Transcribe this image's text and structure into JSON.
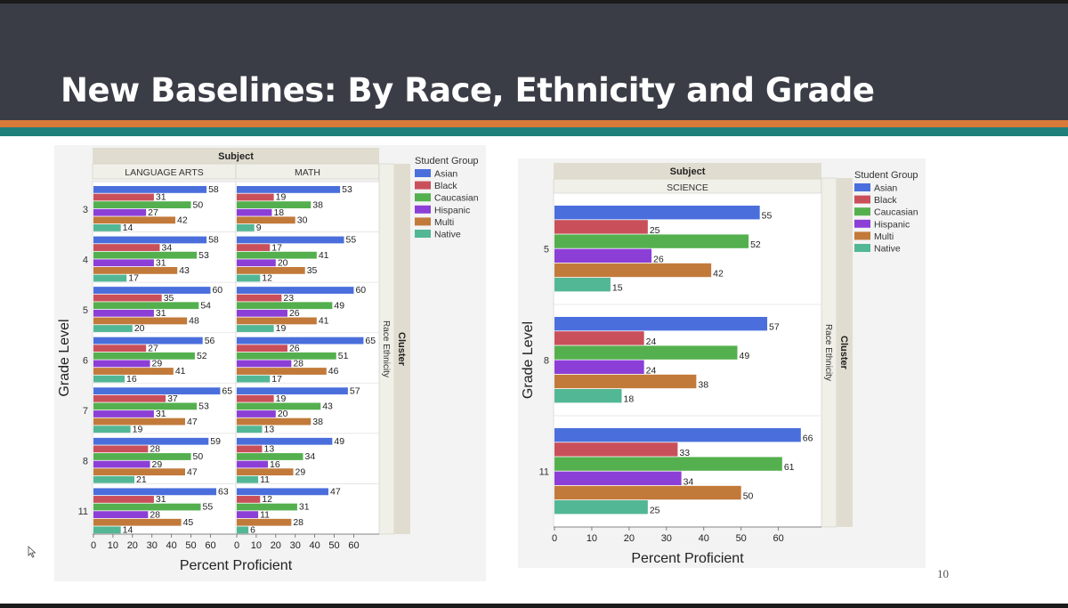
{
  "slide": {
    "title": "New Baselines: By Race, Ethnicity and Grade",
    "page_number": "10"
  },
  "colors": {
    "Asian": "#4a6fdc",
    "Black": "#c9505a",
    "Caucasian": "#54b04e",
    "Hispanic": "#8c3fd6",
    "Multi": "#c27a3a",
    "Native": "#52b794"
  },
  "chart_data": [
    {
      "type": "bar",
      "orientation": "horizontal",
      "subject_header": "Subject",
      "panels": [
        "LANGUAGE ARTS",
        "MATH"
      ],
      "cluster_header": "Cluster",
      "cluster_value": "Race Ethnicity",
      "xlabel": "Percent Proficient",
      "ylabel": "Grade Level",
      "xlim": [
        0,
        70
      ],
      "xticks": [
        0,
        10,
        20,
        30,
        40,
        50,
        60
      ],
      "legend_title": "Student Group",
      "legend_position": "right",
      "categories": [
        "3",
        "4",
        "5",
        "6",
        "7",
        "8",
        "11"
      ],
      "series_names": [
        "Asian",
        "Black",
        "Caucasian",
        "Hispanic",
        "Multi",
        "Native"
      ],
      "values": {
        "LANGUAGE ARTS": {
          "Asian": [
            58,
            58,
            60,
            56,
            65,
            59,
            63
          ],
          "Black": [
            31,
            34,
            35,
            27,
            37,
            28,
            31
          ],
          "Caucasian": [
            50,
            53,
            54,
            52,
            53,
            50,
            55
          ],
          "Hispanic": [
            27,
            31,
            31,
            29,
            31,
            29,
            28
          ],
          "Multi": [
            42,
            43,
            48,
            41,
            47,
            47,
            45
          ],
          "Native": [
            14,
            17,
            20,
            16,
            19,
            21,
            14
          ]
        },
        "MATH": {
          "Asian": [
            53,
            55,
            60,
            65,
            57,
            49,
            47
          ],
          "Black": [
            19,
            17,
            23,
            26,
            19,
            13,
            12
          ],
          "Caucasian": [
            38,
            41,
            49,
            51,
            43,
            34,
            31
          ],
          "Hispanic": [
            18,
            20,
            26,
            28,
            20,
            16,
            11
          ],
          "Multi": [
            30,
            35,
            41,
            46,
            38,
            29,
            28
          ],
          "Native": [
            9,
            12,
            19,
            17,
            13,
            11,
            6
          ]
        }
      }
    },
    {
      "type": "bar",
      "orientation": "horizontal",
      "subject_header": "Subject",
      "panels": [
        "SCIENCE"
      ],
      "cluster_header": "Cluster",
      "cluster_value": "Race Ethnicity",
      "xlabel": "Percent Proficient",
      "ylabel": "Grade Level",
      "xlim": [
        0,
        70
      ],
      "xticks": [
        0,
        10,
        20,
        30,
        40,
        50,
        60
      ],
      "legend_title": "Student Group",
      "legend_position": "right",
      "categories": [
        "5",
        "8",
        "11"
      ],
      "series_names": [
        "Asian",
        "Black",
        "Caucasian",
        "Hispanic",
        "Multi",
        "Native"
      ],
      "values": {
        "SCIENCE": {
          "Asian": [
            55,
            57,
            66
          ],
          "Black": [
            25,
            24,
            33
          ],
          "Caucasian": [
            52,
            49,
            61
          ],
          "Hispanic": [
            26,
            24,
            34
          ],
          "Multi": [
            42,
            38,
            50
          ],
          "Native": [
            15,
            18,
            25
          ]
        }
      }
    }
  ]
}
